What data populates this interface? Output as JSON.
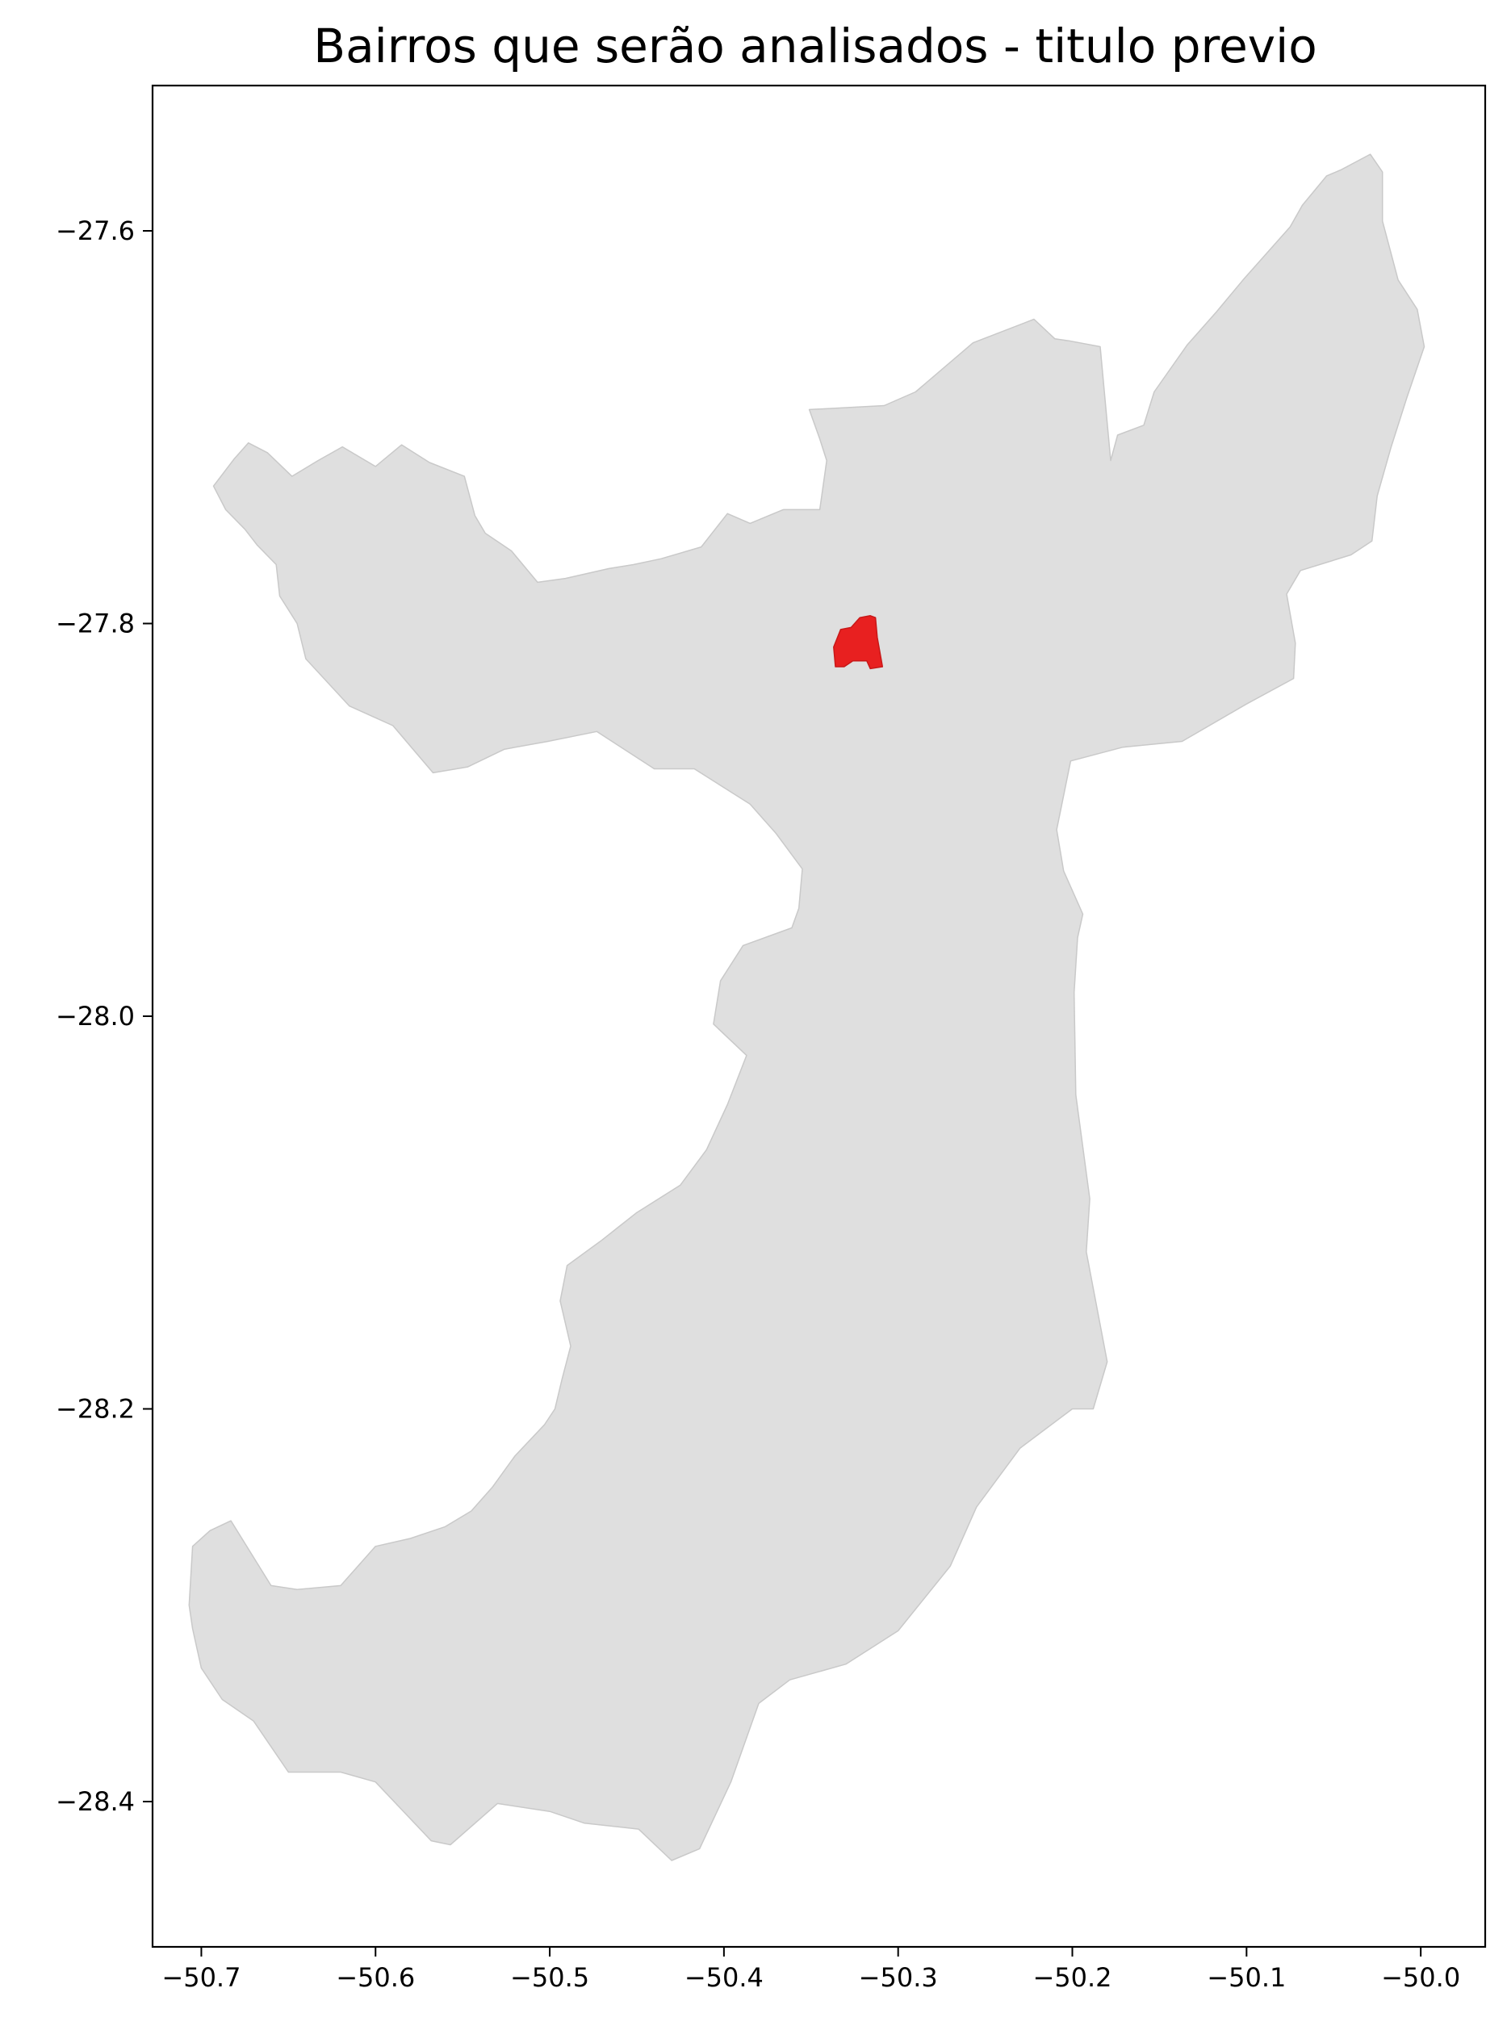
{
  "chart_data": {
    "type": "map",
    "title": "Bairros que serão analisados - titulo previo",
    "xlim": [
      -50.728,
      -49.963
    ],
    "ylim": [
      -28.474,
      -27.526
    ],
    "x_ticks": [
      -50.7,
      -50.6,
      -50.5,
      -50.4,
      -50.3,
      -50.2,
      -50.1,
      -50.0
    ],
    "y_ticks": [
      -27.6,
      -27.8,
      -28.0,
      -28.2,
      -28.4
    ],
    "x_tick_labels": [
      "−50.7",
      "−50.6",
      "−50.5",
      "−50.4",
      "−50.3",
      "−50.2",
      "−50.1",
      "−50.0"
    ],
    "y_tick_labels": [
      "−27.6",
      "−27.8",
      "−28.0",
      "−28.2",
      "−28.4"
    ],
    "grid": false,
    "layers": [
      {
        "id": "municipality",
        "fill": "#dfdfdf",
        "stroke": "#c9c9c9",
        "coordinates": [
          [
            -50.619,
            -27.71
          ],
          [
            -50.6,
            -27.72
          ],
          [
            -50.585,
            -27.709
          ],
          [
            -50.569,
            -27.718
          ],
          [
            -50.549,
            -27.725
          ],
          [
            -50.543,
            -27.745
          ],
          [
            -50.537,
            -27.754
          ],
          [
            -50.522,
            -27.763
          ],
          [
            -50.507,
            -27.779
          ],
          [
            -50.491,
            -27.777
          ],
          [
            -50.466,
            -27.772
          ],
          [
            -50.452,
            -27.77
          ],
          [
            -50.436,
            -27.767
          ],
          [
            -50.413,
            -27.761
          ],
          [
            -50.398,
            -27.744
          ],
          [
            -50.385,
            -27.749
          ],
          [
            -50.366,
            -27.742
          ],
          [
            -50.345,
            -27.742
          ],
          [
            -50.341,
            -27.717
          ],
          [
            -50.345,
            -27.706
          ],
          [
            -50.351,
            -27.691
          ],
          [
            -50.308,
            -27.689
          ],
          [
            -50.29,
            -27.682
          ],
          [
            -50.257,
            -27.657
          ],
          [
            -50.222,
            -27.645
          ],
          [
            -50.21,
            -27.655
          ],
          [
            -50.202,
            -27.656
          ],
          [
            -50.184,
            -27.659
          ],
          [
            -50.178,
            -27.717
          ],
          [
            -50.174,
            -27.704
          ],
          [
            -50.159,
            -27.699
          ],
          [
            -50.153,
            -27.682
          ],
          [
            -50.134,
            -27.658
          ],
          [
            -50.117,
            -27.641
          ],
          [
            -50.102,
            -27.625
          ],
          [
            -50.075,
            -27.598
          ],
          [
            -50.068,
            -27.587
          ],
          [
            -50.054,
            -27.572
          ],
          [
            -50.046,
            -27.569
          ],
          [
            -50.029,
            -27.561
          ],
          [
            -50.022,
            -27.57
          ],
          [
            -50.022,
            -27.595
          ],
          [
            -50.013,
            -27.625
          ],
          [
            -50.002,
            -27.64
          ],
          [
            -49.998,
            -27.659
          ],
          [
            -50.008,
            -27.685
          ],
          [
            -50.017,
            -27.71
          ],
          [
            -50.025,
            -27.735
          ],
          [
            -50.028,
            -27.758
          ],
          [
            -50.04,
            -27.765
          ],
          [
            -50.069,
            -27.773
          ],
          [
            -50.077,
            -27.785
          ],
          [
            -50.072,
            -27.81
          ],
          [
            -50.073,
            -27.828
          ],
          [
            -50.1,
            -27.841
          ],
          [
            -50.137,
            -27.86
          ],
          [
            -50.171,
            -27.863
          ],
          [
            -50.201,
            -27.87
          ],
          [
            -50.209,
            -27.905
          ],
          [
            -50.205,
            -27.926
          ],
          [
            -50.194,
            -27.948
          ],
          [
            -50.197,
            -27.96
          ],
          [
            -50.199,
            -27.988
          ],
          [
            -50.198,
            -28.04
          ],
          [
            -50.19,
            -28.093
          ],
          [
            -50.192,
            -28.12
          ],
          [
            -50.18,
            -28.176
          ],
          [
            -50.188,
            -28.2
          ],
          [
            -50.2,
            -28.2
          ],
          [
            -50.23,
            -28.22
          ],
          [
            -50.255,
            -28.25
          ],
          [
            -50.27,
            -28.28
          ],
          [
            -50.3,
            -28.313
          ],
          [
            -50.33,
            -28.33
          ],
          [
            -50.3622,
            -28.338
          ],
          [
            -50.38,
            -28.35
          ],
          [
            -50.396,
            -28.39
          ],
          [
            -50.414,
            -28.424
          ],
          [
            -50.43,
            -28.43
          ],
          [
            -50.449,
            -28.414
          ],
          [
            -50.48,
            -28.411
          ],
          [
            -50.5,
            -28.405
          ],
          [
            -50.53,
            -28.401
          ],
          [
            -50.557,
            -28.422
          ],
          [
            -50.568,
            -28.42
          ],
          [
            -50.6,
            -28.39
          ],
          [
            -50.62,
            -28.385
          ],
          [
            -50.65,
            -28.385
          ],
          [
            -50.67,
            -28.359
          ],
          [
            -50.688,
            -28.348
          ],
          [
            -50.7,
            -28.332
          ],
          [
            -50.705,
            -28.312
          ],
          [
            -50.707,
            -28.3
          ],
          [
            -50.705,
            -28.27
          ],
          [
            -50.695,
            -28.262
          ],
          [
            -50.683,
            -28.257
          ],
          [
            -50.66,
            -28.29
          ],
          [
            -50.645,
            -28.292
          ],
          [
            -50.62,
            -28.29
          ],
          [
            -50.6,
            -28.27
          ],
          [
            -50.58,
            -28.266
          ],
          [
            -50.56,
            -28.26
          ],
          [
            -50.545,
            -28.252
          ],
          [
            -50.533,
            -28.24
          ],
          [
            -50.52,
            -28.224
          ],
          [
            -50.503,
            -28.208
          ],
          [
            -50.497,
            -28.2
          ],
          [
            -50.493,
            -28.185
          ],
          [
            -50.488,
            -28.168
          ],
          [
            -50.494,
            -28.145
          ],
          [
            -50.49,
            -28.127
          ],
          [
            -50.47,
            -28.114
          ],
          [
            -50.45,
            -28.1
          ],
          [
            -50.425,
            -28.086
          ],
          [
            -50.41,
            -28.068
          ],
          [
            -50.398,
            -28.045
          ],
          [
            -50.387,
            -28.02
          ],
          [
            -50.406,
            -28.004
          ],
          [
            -50.402,
            -27.982
          ],
          [
            -50.389,
            -27.964
          ],
          [
            -50.361,
            -27.955
          ],
          [
            -50.357,
            -27.945
          ],
          [
            -50.355,
            -27.925
          ],
          [
            -50.37,
            -27.907
          ],
          [
            -50.385,
            -27.892
          ],
          [
            -50.401,
            -27.883
          ],
          [
            -50.417,
            -27.874
          ],
          [
            -50.44,
            -27.874
          ],
          [
            -50.473,
            -27.855
          ],
          [
            -50.501,
            -27.86
          ],
          [
            -50.526,
            -27.864
          ],
          [
            -50.547,
            -27.873
          ],
          [
            -50.567,
            -27.876
          ],
          [
            -50.59,
            -27.852
          ],
          [
            -50.615,
            -27.842
          ],
          [
            -50.64,
            -27.818
          ],
          [
            -50.645,
            -27.8
          ],
          [
            -50.655,
            -27.786
          ],
          [
            -50.657,
            -27.77
          ],
          [
            -50.668,
            -27.76
          ],
          [
            -50.675,
            -27.752
          ],
          [
            -50.686,
            -27.742
          ],
          [
            -50.693,
            -27.73
          ],
          [
            -50.681,
            -27.716
          ],
          [
            -50.673,
            -27.708
          ],
          [
            -50.662,
            -27.713
          ],
          [
            -50.648,
            -27.725
          ],
          [
            -50.633,
            -27.717
          ]
        ]
      },
      {
        "id": "selected-neighbourhood",
        "fill": "#e82020",
        "stroke": "#c81818",
        "coordinates": [
          [
            -50.337,
            -27.812
          ],
          [
            -50.333,
            -27.803
          ],
          [
            -50.327,
            -27.802
          ],
          [
            -50.322,
            -27.797
          ],
          [
            -50.316,
            -27.796
          ],
          [
            -50.313,
            -27.797
          ],
          [
            -50.312,
            -27.807
          ],
          [
            -50.309,
            -27.822
          ],
          [
            -50.316,
            -27.823
          ],
          [
            -50.318,
            -27.819
          ],
          [
            -50.326,
            -27.819
          ],
          [
            -50.331,
            -27.822
          ],
          [
            -50.336,
            -27.822
          ]
        ]
      }
    ]
  }
}
